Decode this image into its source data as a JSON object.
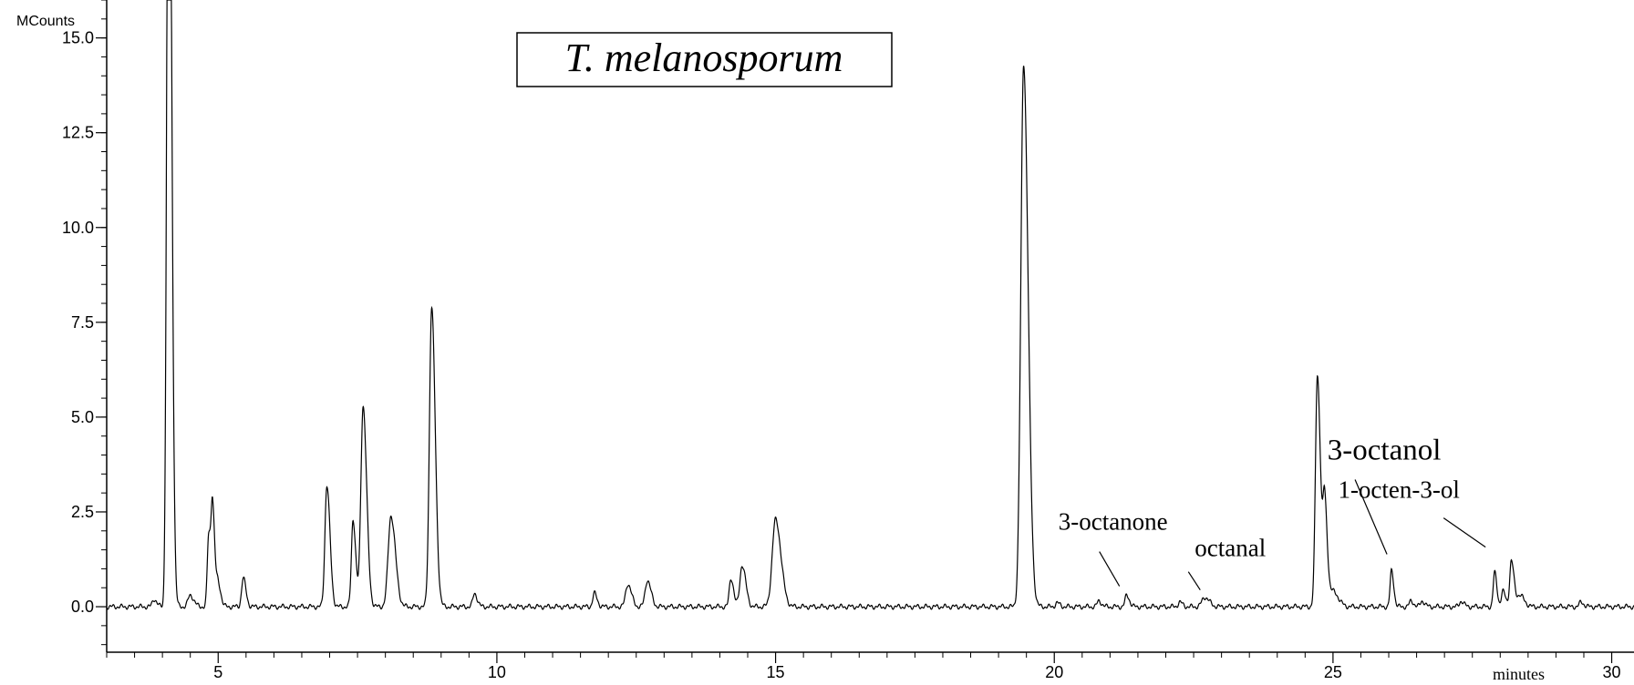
{
  "chart_data": {
    "type": "line",
    "title": "T. melanosporum",
    "ylabel": "MCounts",
    "xlabel": "minutes",
    "xlim": [
      3.0,
      30.4
    ],
    "ylim": [
      -1.2,
      16.0
    ],
    "x_ticks": [
      5,
      10,
      15,
      20,
      25,
      30
    ],
    "y_ticks": [
      0.0,
      2.5,
      5.0,
      7.5,
      10.0,
      12.5,
      15.0
    ],
    "grid": false,
    "baseline": 0.0,
    "series": [
      {
        "peaks": [
          {
            "rt": 3.85,
            "height": 0.2,
            "width": 0.03
          },
          {
            "rt": 4.1,
            "height": 16.0,
            "width": 0.03
          },
          {
            "rt": 4.13,
            "height": 11.2,
            "width": 0.03
          },
          {
            "rt": 4.5,
            "height": 0.3,
            "width": 0.04
          },
          {
            "rt": 4.83,
            "height": 1.9,
            "width": 0.025
          },
          {
            "rt": 4.9,
            "height": 2.5,
            "width": 0.025
          },
          {
            "rt": 5.0,
            "height": 0.6,
            "width": 0.03
          },
          {
            "rt": 5.45,
            "height": 0.75,
            "width": 0.03
          },
          {
            "rt": 6.95,
            "height": 3.2,
            "width": 0.035
          },
          {
            "rt": 7.42,
            "height": 2.3,
            "width": 0.03
          },
          {
            "rt": 7.6,
            "height": 5.3,
            "width": 0.04
          },
          {
            "rt": 8.1,
            "height": 2.4,
            "width": 0.05
          },
          {
            "rt": 8.83,
            "height": 7.9,
            "width": 0.04
          },
          {
            "rt": 9.6,
            "height": 0.35,
            "width": 0.03
          },
          {
            "rt": 11.75,
            "height": 0.35,
            "width": 0.03
          },
          {
            "rt": 12.35,
            "height": 0.6,
            "width": 0.04
          },
          {
            "rt": 12.7,
            "height": 0.7,
            "width": 0.04
          },
          {
            "rt": 14.2,
            "height": 0.75,
            "width": 0.03
          },
          {
            "rt": 14.4,
            "height": 1.1,
            "width": 0.04
          },
          {
            "rt": 15.0,
            "height": 2.3,
            "width": 0.06
          },
          {
            "rt": 19.45,
            "height": 14.3,
            "width": 0.05
          },
          {
            "rt": 20.05,
            "height": 0.1,
            "width": 0.03
          },
          {
            "rt": 20.8,
            "height": 0.15,
            "width": 0.03
          },
          {
            "rt": 21.3,
            "height": 0.3,
            "width": 0.03
          },
          {
            "rt": 22.25,
            "height": 0.12,
            "width": 0.03
          },
          {
            "rt": 22.7,
            "height": 0.25,
            "width": 0.05
          },
          {
            "rt": 24.72,
            "height": 6.1,
            "width": 0.035
          },
          {
            "rt": 24.85,
            "height": 2.7,
            "width": 0.03
          },
          {
            "rt": 25.0,
            "height": 0.4,
            "width": 0.06
          },
          {
            "rt": 26.05,
            "height": 0.95,
            "width": 0.025
          },
          {
            "rt": 26.4,
            "height": 0.15,
            "width": 0.03
          },
          {
            "rt": 26.6,
            "height": 0.15,
            "width": 0.03
          },
          {
            "rt": 27.3,
            "height": 0.15,
            "width": 0.03
          },
          {
            "rt": 27.9,
            "height": 0.9,
            "width": 0.025
          },
          {
            "rt": 28.05,
            "height": 0.4,
            "width": 0.03
          },
          {
            "rt": 28.2,
            "height": 1.2,
            "width": 0.03
          },
          {
            "rt": 28.35,
            "height": 0.3,
            "width": 0.05
          },
          {
            "rt": 29.45,
            "height": 0.12,
            "width": 0.03
          }
        ]
      }
    ],
    "annotations": [
      {
        "text": "3-octanone",
        "rt": 21.3,
        "y": 0.3
      },
      {
        "text": "octanal",
        "rt": 22.7,
        "y": 0.25
      },
      {
        "text": "3-octanol",
        "rt": 26.05,
        "y": 0.95
      },
      {
        "text": "1-octen-3-ol",
        "rt": 27.9,
        "y": 0.9
      }
    ]
  }
}
